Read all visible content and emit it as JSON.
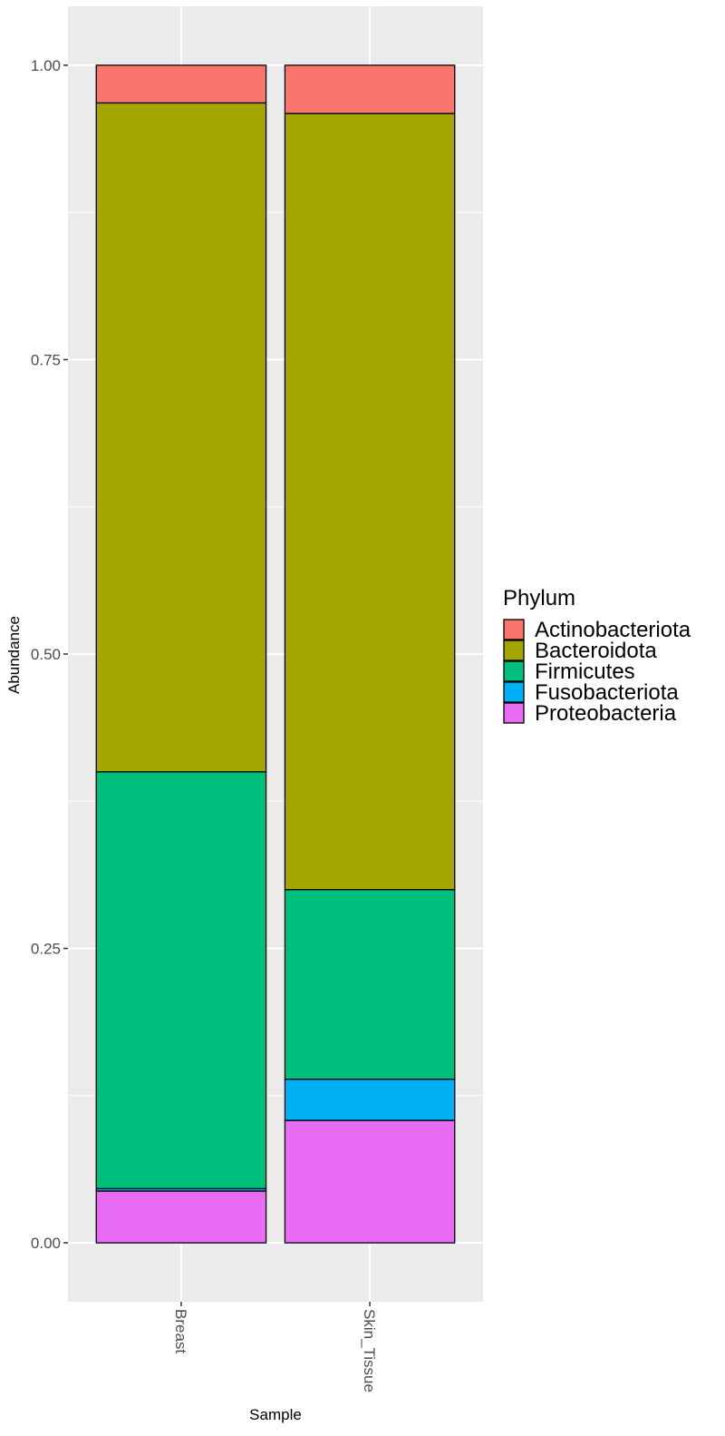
{
  "chart_data": {
    "type": "bar",
    "stacked": true,
    "xlabel": "Sample",
    "ylabel": "Abundance",
    "ylim": [
      -0.05,
      1.05
    ],
    "yticks": [
      0.0,
      0.25,
      0.5,
      0.75,
      1.0
    ],
    "ytick_labels": [
      "0.00",
      "0.25",
      "0.50",
      "0.75",
      "1.00"
    ],
    "categories": [
      "Breast",
      "Skin_Tissue"
    ],
    "legend": {
      "title": "Phylum",
      "placement": "right"
    },
    "series": [
      {
        "name": "Proteobacteria",
        "color": "#E76BF3",
        "values": [
          0.044,
          0.104
        ]
      },
      {
        "name": "Fusobacteriota",
        "color": "#00B0F6",
        "values": [
          0.002,
          0.035
        ]
      },
      {
        "name": "Firmicutes",
        "color": "#00BF7D",
        "values": [
          0.354,
          0.161
        ]
      },
      {
        "name": "Bacteroidota",
        "color": "#A3A500",
        "values": [
          0.568,
          0.659
        ]
      },
      {
        "name": "Actinobacteriota",
        "color": "#F8766D",
        "values": [
          0.032,
          0.041
        ]
      }
    ],
    "legend_order": [
      "Actinobacteriota",
      "Bacteroidota",
      "Firmicutes",
      "Fusobacteriota",
      "Proteobacteria"
    ],
    "grid": true,
    "panel_background": "#EBEBEB",
    "grid_color": "#FFFFFF"
  }
}
